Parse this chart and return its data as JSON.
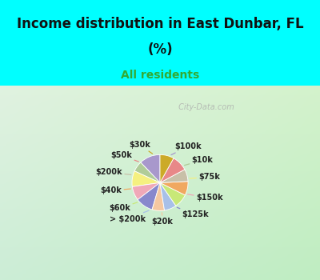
{
  "title_line1": "Income distribution in East Dunbar, FL",
  "title_line2": "(%)",
  "subtitle": "All residents",
  "title_color": "#111111",
  "subtitle_color": "#33aa33",
  "bg_top": "#00ffff",
  "watermark": " City-Data.com",
  "labels": [
    "$100k",
    "$10k",
    "$75k",
    "$150k",
    "$125k",
    "$20k",
    "> $200k",
    "$60k",
    "$40k",
    "$200k",
    "$50k",
    "$30k"
  ],
  "values": [
    12,
    6,
    9,
    8,
    10,
    7,
    7,
    8,
    8,
    7,
    9,
    8
  ],
  "colors": [
    "#a898cc",
    "#b0cc98",
    "#f5f080",
    "#f0a8b8",
    "#8888cc",
    "#f5c8a0",
    "#a8c0e8",
    "#c8e878",
    "#f0a860",
    "#c8c0a8",
    "#e88888",
    "#ccaa28"
  ],
  "startangle": 90,
  "figsize": [
    4.0,
    3.5
  ],
  "dpi": 100
}
